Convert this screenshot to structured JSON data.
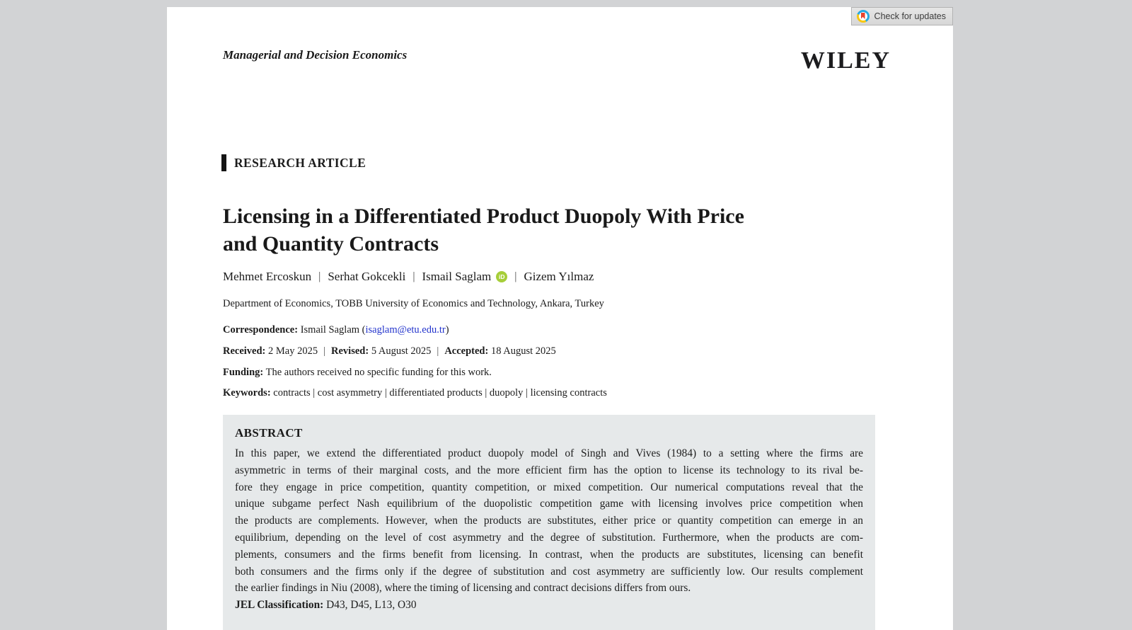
{
  "window": {
    "updates_button": {
      "label": "Check for updates",
      "icon": "crossmark-icon"
    }
  },
  "header": {
    "journal": "Managerial and Decision Economics",
    "publisher_logo": "WILEY"
  },
  "article": {
    "kicker": "RESEARCH ARTICLE",
    "title_lines": [
      "Licensing in a Differentiated Product Duopoly With Price",
      "and Quantity Contracts"
    ],
    "authors": [
      {
        "name": "Mehmet Ercoskun",
        "orcid": false
      },
      {
        "name": "Serhat Gokcekli",
        "orcid": false
      },
      {
        "name": "Ismail Saglam",
        "orcid": true
      },
      {
        "name": "Gizem Yılmaz",
        "orcid": false
      }
    ],
    "orcid_text": "iD",
    "separator": "|",
    "affiliation": "Department of Economics, TOBB University of Economics and Technology, Ankara, Turkey",
    "correspondence": {
      "label": "Correspondence:",
      "text_before": "Ismail Saglam (",
      "email": "isaglam@etu.edu.tr",
      "text_after": ")"
    },
    "dates": {
      "received_label": "Received:",
      "received": "2 May 2025",
      "revised_label": "Revised:",
      "revised": "5 August 2025",
      "accepted_label": "Accepted:",
      "accepted": "18 August 2025"
    },
    "funding": {
      "label": "Funding:",
      "text": "The authors received no specific funding for this work."
    },
    "keywords": {
      "label": "Keywords:",
      "text": "contracts | cost asymmetry | differentiated products | duopoly | licensing contracts"
    }
  },
  "abstract": {
    "heading": "ABSTRACT",
    "lines": [
      "In this paper, we extend the differentiated product duopoly model of Singh and Vives (1984) to a setting where the firms are",
      "asymmetric in terms of their marginal costs, and the more efficient firm has the option to license its technology to its rival be-",
      "fore they engage in price competition, quantity competition, or mixed competition. Our numerical computations reveal that the",
      "unique subgame perfect Nash equilibrium of the duopolistic competition game with licensing involves price competition when",
      "the products are complements. However, when the products are substitutes, either price or quantity competition can emerge in an",
      "equilibrium, depending on the level of cost asymmetry and the degree of substitution. Furthermore, when the products are com-",
      "plements, consumers and the firms benefit from licensing. In contrast, when the products are substitutes, licensing can benefit",
      "both consumers and the firms only if the degree of substitution and cost asymmetry are sufficiently low. Our results complement",
      "the earlier findings in Niu (2008), where the timing of licensing and contract decisions differs from ours."
    ],
    "jel": {
      "label": "JEL Classification:",
      "text": " D43, D45, L13, O30"
    }
  },
  "colors": {
    "desktop_background": "#d2d3d5",
    "page_background": "#ffffff",
    "abstract_background": "#e6e9ea",
    "link_blue": "#2233cc",
    "orcid_green": "#a6ce39",
    "crossmark_blue": "#27a9e1",
    "crossmark_yellow": "#f8c711",
    "crossmark_red": "#e8432d"
  }
}
